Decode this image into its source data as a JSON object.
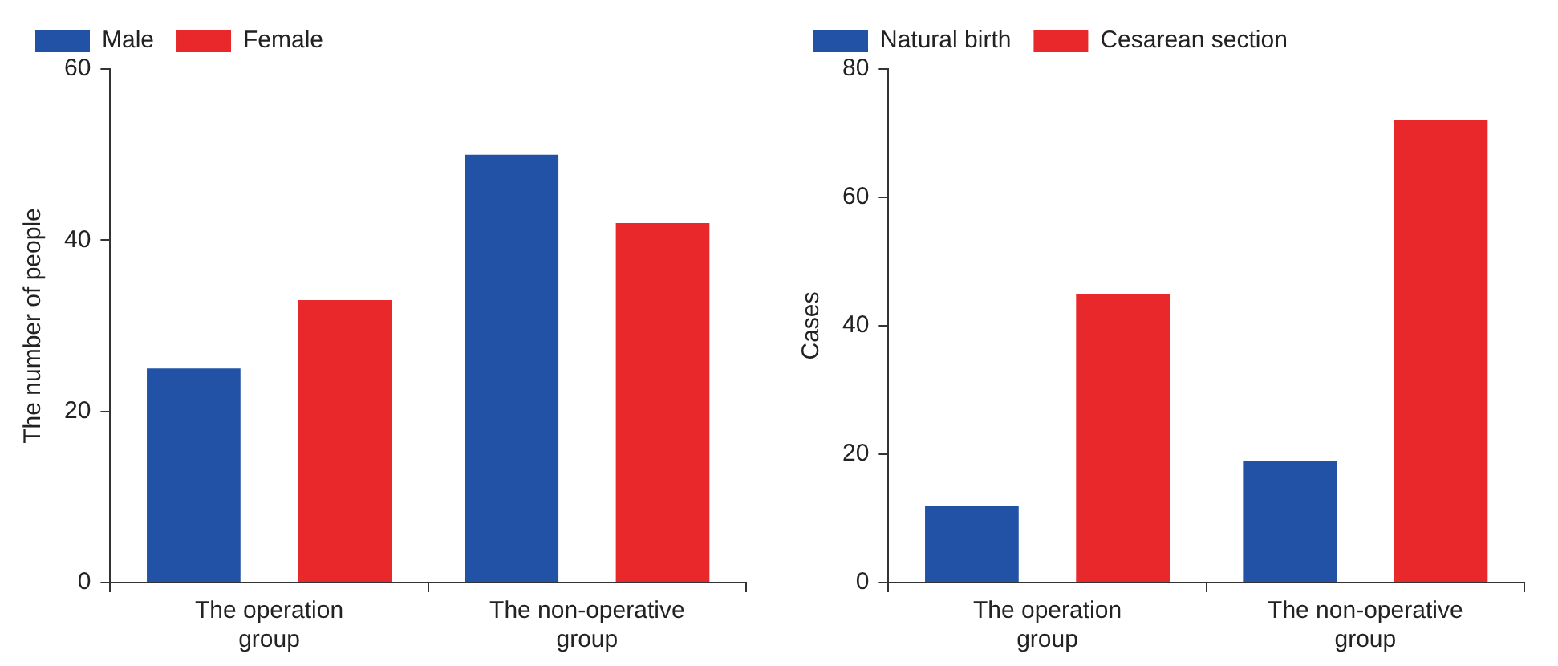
{
  "chart_data": [
    {
      "type": "bar",
      "ylabel": "The number of people",
      "categories": [
        "The operation\ngroup",
        "The non-operative\ngroup"
      ],
      "series": [
        {
          "name": "Male",
          "color": "#2152a6",
          "values": [
            25,
            50
          ]
        },
        {
          "name": "Female",
          "color": "#e8282b",
          "values": [
            33,
            42
          ]
        }
      ],
      "ylim": [
        0,
        60
      ],
      "yticks": [
        0,
        20,
        40,
        60
      ],
      "grid": false,
      "legend": "top left"
    },
    {
      "type": "bar",
      "ylabel": "Cases",
      "categories": [
        "The operation\ngroup",
        "The non-operative\ngroup"
      ],
      "series": [
        {
          "name": "Natural birth",
          "color": "#2152a6",
          "values": [
            12,
            19
          ]
        },
        {
          "name": "Cesarean section",
          "color": "#e8282b",
          "values": [
            45,
            72
          ]
        }
      ],
      "ylim": [
        0,
        80
      ],
      "yticks": [
        0,
        20,
        40,
        60,
        80
      ],
      "grid": false,
      "legend": "top left"
    }
  ]
}
